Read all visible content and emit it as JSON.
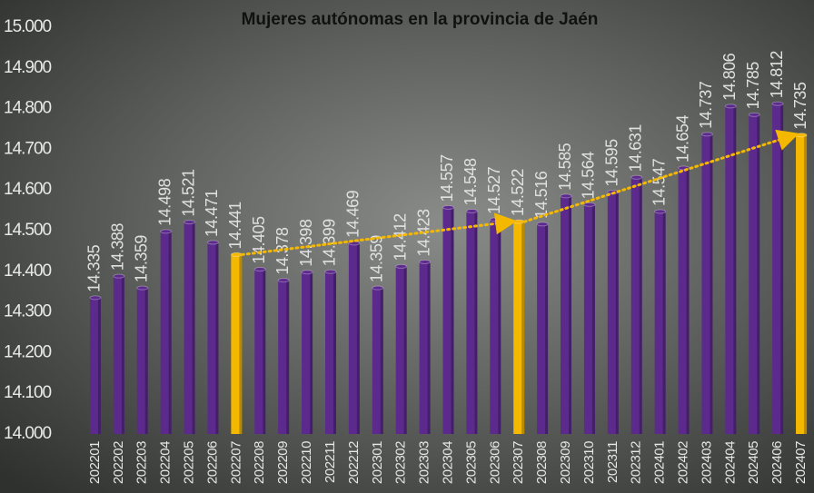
{
  "chart_data": {
    "type": "bar",
    "title": "Mujeres autónomas en la provincia de Jaén",
    "categories": [
      "202201",
      "202202",
      "202203",
      "202204",
      "202205",
      "202206",
      "202207",
      "202208",
      "202209",
      "202210",
      "202211",
      "202212",
      "202301",
      "202302",
      "202303",
      "202304",
      "202305",
      "202306",
      "202307",
      "202308",
      "202309",
      "202310",
      "202311",
      "202312",
      "202401",
      "202402",
      "202403",
      "202404",
      "202405",
      "202406",
      "202407"
    ],
    "values": [
      14335,
      14388,
      14359,
      14498,
      14521,
      14471,
      14441,
      14405,
      14378,
      14398,
      14399,
      14469,
      14359,
      14412,
      14423,
      14557,
      14548,
      14527,
      14522,
      14516,
      14585,
      14564,
      14595,
      14631,
      14547,
      14654,
      14737,
      14806,
      14785,
      14812,
      14735
    ],
    "value_labels": [
      "14.335",
      "14.388",
      "14.359",
      "14.498",
      "14.521",
      "14.471",
      "14.441",
      "14.405",
      "14.378",
      "14.398",
      "14.399",
      "14.469",
      "14.359",
      "14.412",
      "14.423",
      "14.557",
      "14.548",
      "14.527",
      "14.522",
      "14.516",
      "14.585",
      "14.564",
      "14.595",
      "14.631",
      "14.547",
      "14.654",
      "14.737",
      "14.806",
      "14.785",
      "14.812",
      "14.735"
    ],
    "colors": [
      "#5b2a8c",
      "#5b2a8c",
      "#5b2a8c",
      "#5b2a8c",
      "#5b2a8c",
      "#5b2a8c",
      "#f5b800",
      "#5b2a8c",
      "#5b2a8c",
      "#5b2a8c",
      "#5b2a8c",
      "#5b2a8c",
      "#5b2a8c",
      "#5b2a8c",
      "#5b2a8c",
      "#5b2a8c",
      "#5b2a8c",
      "#5b2a8c",
      "#f5b800",
      "#5b2a8c",
      "#5b2a8c",
      "#5b2a8c",
      "#5b2a8c",
      "#5b2a8c",
      "#5b2a8c",
      "#5b2a8c",
      "#5b2a8c",
      "#5b2a8c",
      "#5b2a8c",
      "#5b2a8c",
      "#f5b800"
    ],
    "ylim": [
      14000,
      15000
    ],
    "yticks": [
      {
        "value": 14000,
        "label": "14.000"
      },
      {
        "value": 14100,
        "label": "14.100"
      },
      {
        "value": 14200,
        "label": "14.200"
      },
      {
        "value": 14300,
        "label": "14.300"
      },
      {
        "value": 14400,
        "label": "14.400"
      },
      {
        "value": 14500,
        "label": "14.500"
      },
      {
        "value": 14600,
        "label": "14.600"
      },
      {
        "value": 14700,
        "label": "14.700"
      },
      {
        "value": 14800,
        "label": "14.800"
      },
      {
        "value": 14900,
        "label": "14.900"
      },
      {
        "value": 15000,
        "label": "15.000"
      }
    ],
    "grid": false
  }
}
